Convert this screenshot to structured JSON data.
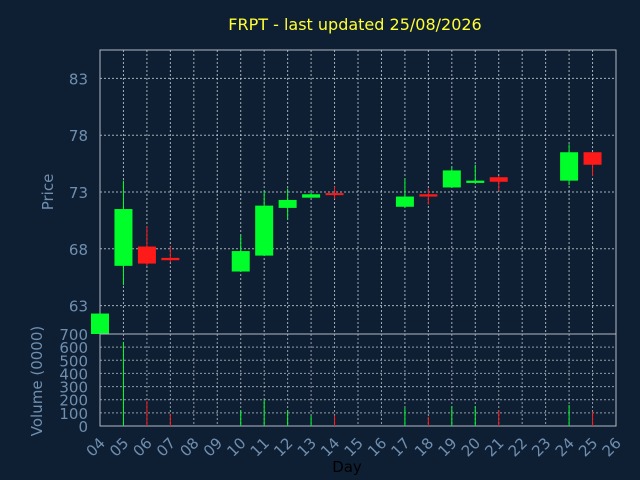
{
  "chart_data": {
    "type": "candlestick",
    "title": "FRPT - last updated 25/08/2026",
    "price_panel": {
      "ylabel": "Price",
      "yticks": [
        63,
        68,
        73,
        78,
        83
      ],
      "ylim": [
        60.5,
        85.5
      ]
    },
    "volume_panel": {
      "ylabel": "Volume (0000)",
      "yticks": [
        0,
        100,
        200,
        300,
        400,
        500,
        600,
        700
      ],
      "ylim": [
        0,
        700
      ]
    },
    "xlabel": "Day",
    "x_ticks": [
      "04",
      "05",
      "06",
      "07",
      "08",
      "09",
      "10",
      "11",
      "12",
      "13",
      "14",
      "15",
      "16",
      "17",
      "18",
      "19",
      "20",
      "21",
      "22",
      "23",
      "24",
      "25",
      "26"
    ],
    "series": [
      {
        "day": "04",
        "open": 60.5,
        "close": 62.3,
        "high": 62.3,
        "low": 60.5,
        "volume": 0
      },
      {
        "day": "05",
        "open": 66.5,
        "close": 71.5,
        "high": 74.0,
        "low": 64.8,
        "volume": 640
      },
      {
        "day": "06",
        "open": 68.2,
        "close": 66.7,
        "high": 70.0,
        "low": 66.5,
        "volume": 190
      },
      {
        "day": "07",
        "open": 67.2,
        "close": 67.0,
        "high": 68.2,
        "low": 66.8,
        "volume": 90
      },
      {
        "day": "10",
        "open": 66.0,
        "close": 67.8,
        "high": 69.2,
        "low": 66.0,
        "volume": 120
      },
      {
        "day": "11",
        "open": 67.4,
        "close": 71.8,
        "high": 73.1,
        "low": 67.4,
        "volume": 200
      },
      {
        "day": "12",
        "open": 71.6,
        "close": 72.3,
        "high": 73.3,
        "low": 70.6,
        "volume": 120
      },
      {
        "day": "13",
        "open": 72.5,
        "close": 72.8,
        "high": 73.0,
        "low": 72.5,
        "volume": 80
      },
      {
        "day": "14",
        "open": 72.9,
        "close": 72.8,
        "high": 73.5,
        "low": 72.4,
        "volume": 80
      },
      {
        "day": "17",
        "open": 71.7,
        "close": 72.6,
        "high": 74.2,
        "low": 71.6,
        "volume": 140
      },
      {
        "day": "18",
        "open": 72.8,
        "close": 72.6,
        "high": 73.3,
        "low": 71.9,
        "volume": 70
      },
      {
        "day": "19",
        "open": 73.4,
        "close": 74.9,
        "high": 75.2,
        "low": 73.4,
        "volume": 150
      },
      {
        "day": "20",
        "open": 73.8,
        "close": 74.0,
        "high": 75.4,
        "low": 73.8,
        "volume": 150
      },
      {
        "day": "21",
        "open": 74.3,
        "close": 73.9,
        "high": 74.4,
        "low": 73.1,
        "volume": 120
      },
      {
        "day": "24",
        "open": 74.0,
        "close": 76.5,
        "high": 77.2,
        "low": 73.6,
        "volume": 160
      },
      {
        "day": "25",
        "open": 76.5,
        "close": 75.4,
        "high": 76.5,
        "low": 74.4,
        "volume": 110
      }
    ]
  },
  "colors": {
    "background": "#0f1f33",
    "title": "#ffff33",
    "axis_text": "#6f8fb0",
    "grid": "#c8d2dc",
    "up": "#00ff2a",
    "down": "#ff1a1a",
    "axis_line": "#b0b8c4"
  }
}
